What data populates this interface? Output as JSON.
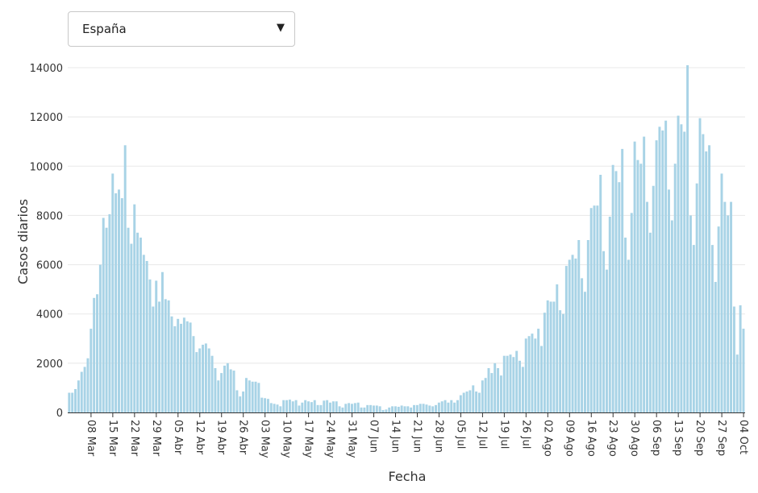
{
  "selector": {
    "selected": "España",
    "arrow_icon": "triangle-down-icon"
  },
  "colors": {
    "bar": "#a8d3e6",
    "bar_stroke": "#8cc1d9",
    "grid": "#e8e8e8",
    "axis": "#333333"
  },
  "chart_data": {
    "type": "bar",
    "xlabel": "Fecha",
    "ylabel": "Casos diarios",
    "ylim": [
      0,
      14000
    ],
    "yticks": [
      0,
      2000,
      4000,
      6000,
      8000,
      10000,
      12000,
      14000
    ],
    "x_start": "2020-03-01",
    "xtick_labels": [
      "08 Mar",
      "15 Mar",
      "22 Mar",
      "29 Mar",
      "05 Abr",
      "12 Abr",
      "19 Abr",
      "26 Abr",
      "03 May",
      "10 May",
      "17 May",
      "24 May",
      "31 May",
      "07 Jun",
      "14 Jun",
      "21 Jun",
      "28 Jun",
      "05 Jul",
      "12 Jul",
      "19 Jul",
      "26 Jul",
      "02 Ago",
      "09 Ago",
      "16 Ago",
      "23 Ago",
      "30 Ago",
      "06 Sep",
      "13 Sep",
      "20 Sep",
      "27 Sep",
      "04 Oct"
    ],
    "grid": true,
    "values": [
      800,
      800,
      950,
      1300,
      1650,
      1850,
      2200,
      3400,
      4650,
      4800,
      6000,
      7900,
      7500,
      8050,
      9700,
      8900,
      9050,
      8700,
      10850,
      7500,
      6850,
      8450,
      7300,
      7100,
      6400,
      6150,
      5400,
      4300,
      5350,
      4500,
      5700,
      4600,
      4550,
      3900,
      3500,
      3800,
      3600,
      3850,
      3700,
      3650,
      3100,
      2450,
      2600,
      2750,
      2800,
      2600,
      2300,
      1800,
      1300,
      1600,
      1900,
      2000,
      1750,
      1700,
      900,
      650,
      850,
      1400,
      1300,
      1250,
      1250,
      1200,
      600,
      580,
      550,
      380,
      350,
      320,
      250,
      500,
      500,
      520,
      450,
      500,
      280,
      400,
      500,
      450,
      420,
      500,
      300,
      300,
      480,
      500,
      400,
      450,
      450,
      250,
      200,
      350,
      380,
      350,
      380,
      400,
      200,
      200,
      300,
      300,
      280,
      280,
      250,
      100,
      120,
      200,
      250,
      250,
      230,
      280,
      250,
      250,
      200,
      300,
      300,
      350,
      350,
      320,
      280,
      250,
      300,
      400,
      450,
      500,
      400,
      500,
      400,
      500,
      700,
      800,
      850,
      900,
      1100,
      850,
      800,
      1300,
      1400,
      1800,
      1600,
      2000,
      1800,
      1500,
      2300,
      2300,
      2350,
      2250,
      2500,
      2100,
      1850,
      3000,
      3100,
      3200,
      3000,
      3400,
      2700,
      4050,
      4550,
      4500,
      4500,
      5200,
      4150,
      4000,
      5950,
      6200,
      6400,
      6250,
      7000,
      5450,
      4900,
      7000,
      8300,
      8400,
      8400,
      9650,
      6550,
      5800,
      7950,
      10050,
      9800,
      9350,
      10700,
      7100,
      6200,
      8100,
      11000,
      10250,
      10100,
      11200,
      8550,
      7300,
      9200,
      11050,
      11600,
      11450,
      11850,
      9050,
      7800,
      10100,
      12050,
      11700,
      11400,
      14100,
      8000,
      6800,
      9300,
      11950,
      11300,
      10600,
      10850,
      6800,
      5300,
      7550,
      9700,
      8550,
      8000,
      8550,
      4300,
      2350,
      4350,
      3400
    ]
  }
}
